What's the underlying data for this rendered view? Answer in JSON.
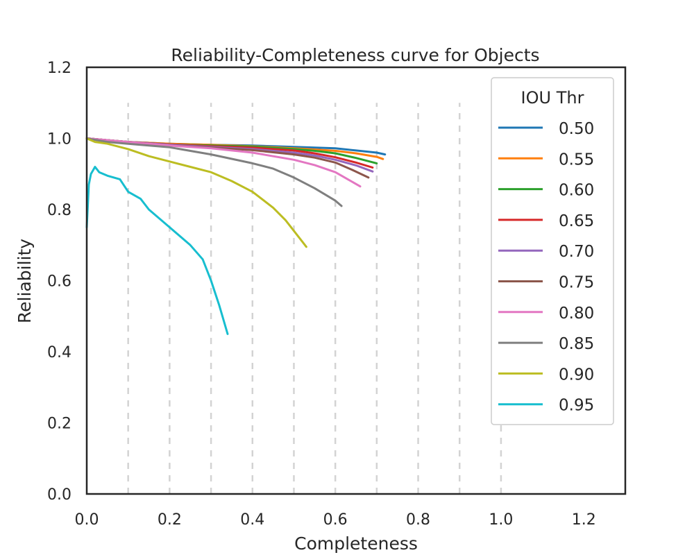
{
  "chart_data": {
    "type": "line",
    "title": "Reliability-Completeness curve for Objects",
    "xlabel": "Completeness",
    "ylabel": "Reliability",
    "xlim": [
      0.0,
      1.3
    ],
    "ylim": [
      0.0,
      1.2
    ],
    "xticks": [
      "0.0",
      "0.2",
      "0.4",
      "0.6",
      "0.8",
      "1.0",
      "1.2"
    ],
    "yticks": [
      "0.0",
      "0.2",
      "0.4",
      "0.6",
      "0.8",
      "1.0",
      "1.2"
    ],
    "grid": "vertical dashed lines at x = 0.1 to 1.0, y from 0 to 1.1",
    "legend": {
      "title": "IOU Thr",
      "placement": "upper right"
    },
    "series": [
      {
        "name": "0.50",
        "color": "#1f77b4",
        "x": [
          0.0,
          0.05,
          0.1,
          0.2,
          0.3,
          0.4,
          0.5,
          0.55,
          0.6,
          0.65,
          0.7,
          0.72
        ],
        "y": [
          1.0,
          0.995,
          0.99,
          0.985,
          0.982,
          0.98,
          0.976,
          0.974,
          0.972,
          0.966,
          0.96,
          0.955
        ]
      },
      {
        "name": "0.55",
        "color": "#ff7f0e",
        "x": [
          0.0,
          0.05,
          0.1,
          0.2,
          0.3,
          0.4,
          0.5,
          0.6,
          0.65,
          0.7,
          0.715
        ],
        "y": [
          1.0,
          0.995,
          0.99,
          0.985,
          0.982,
          0.978,
          0.972,
          0.965,
          0.958,
          0.948,
          0.942
        ]
      },
      {
        "name": "0.60",
        "color": "#2ca02c",
        "x": [
          0.0,
          0.05,
          0.1,
          0.2,
          0.3,
          0.4,
          0.5,
          0.55,
          0.6,
          0.65,
          0.7
        ],
        "y": [
          1.0,
          0.995,
          0.99,
          0.983,
          0.98,
          0.977,
          0.97,
          0.965,
          0.958,
          0.945,
          0.93
        ]
      },
      {
        "name": "0.65",
        "color": "#d62728",
        "x": [
          0.0,
          0.05,
          0.1,
          0.2,
          0.3,
          0.4,
          0.5,
          0.55,
          0.6,
          0.65,
          0.69
        ],
        "y": [
          1.0,
          0.995,
          0.99,
          0.983,
          0.978,
          0.974,
          0.966,
          0.958,
          0.947,
          0.932,
          0.918
        ]
      },
      {
        "name": "0.70",
        "color": "#9467bd",
        "x": [
          0.0,
          0.05,
          0.1,
          0.2,
          0.3,
          0.4,
          0.5,
          0.55,
          0.6,
          0.65,
          0.69
        ],
        "y": [
          1.0,
          0.995,
          0.99,
          0.982,
          0.976,
          0.97,
          0.96,
          0.952,
          0.94,
          0.924,
          0.907
        ]
      },
      {
        "name": "0.75",
        "color": "#8c564b",
        "x": [
          0.0,
          0.05,
          0.1,
          0.2,
          0.3,
          0.4,
          0.5,
          0.55,
          0.6,
          0.64,
          0.68
        ],
        "y": [
          1.0,
          0.995,
          0.99,
          0.98,
          0.974,
          0.967,
          0.955,
          0.946,
          0.932,
          0.912,
          0.89
        ]
      },
      {
        "name": "0.80",
        "color": "#e377c2",
        "x": [
          0.0,
          0.05,
          0.1,
          0.2,
          0.3,
          0.4,
          0.5,
          0.55,
          0.6,
          0.63,
          0.66
        ],
        "y": [
          1.0,
          0.995,
          0.99,
          0.98,
          0.972,
          0.96,
          0.94,
          0.925,
          0.905,
          0.885,
          0.865
        ]
      },
      {
        "name": "0.85",
        "color": "#7f7f7f",
        "x": [
          0.0,
          0.05,
          0.1,
          0.2,
          0.3,
          0.4,
          0.45,
          0.5,
          0.55,
          0.6,
          0.615
        ],
        "y": [
          1.0,
          0.99,
          0.985,
          0.975,
          0.955,
          0.93,
          0.915,
          0.89,
          0.86,
          0.825,
          0.81
        ]
      },
      {
        "name": "0.90",
        "color": "#bcbd22",
        "x": [
          0.0,
          0.02,
          0.05,
          0.1,
          0.15,
          0.2,
          0.25,
          0.3,
          0.35,
          0.4,
          0.45,
          0.48,
          0.5,
          0.52,
          0.53
        ],
        "y": [
          1.0,
          0.99,
          0.985,
          0.97,
          0.95,
          0.935,
          0.92,
          0.905,
          0.88,
          0.85,
          0.805,
          0.77,
          0.74,
          0.71,
          0.695
        ]
      },
      {
        "name": "0.95",
        "color": "#17becf",
        "x": [
          0.0,
          0.005,
          0.01,
          0.015,
          0.02,
          0.03,
          0.05,
          0.08,
          0.1,
          0.13,
          0.15,
          0.2,
          0.25,
          0.28,
          0.3,
          0.32,
          0.34
        ],
        "y": [
          0.75,
          0.87,
          0.9,
          0.91,
          0.92,
          0.905,
          0.895,
          0.885,
          0.85,
          0.83,
          0.8,
          0.75,
          0.7,
          0.66,
          0.6,
          0.53,
          0.45
        ]
      }
    ]
  }
}
